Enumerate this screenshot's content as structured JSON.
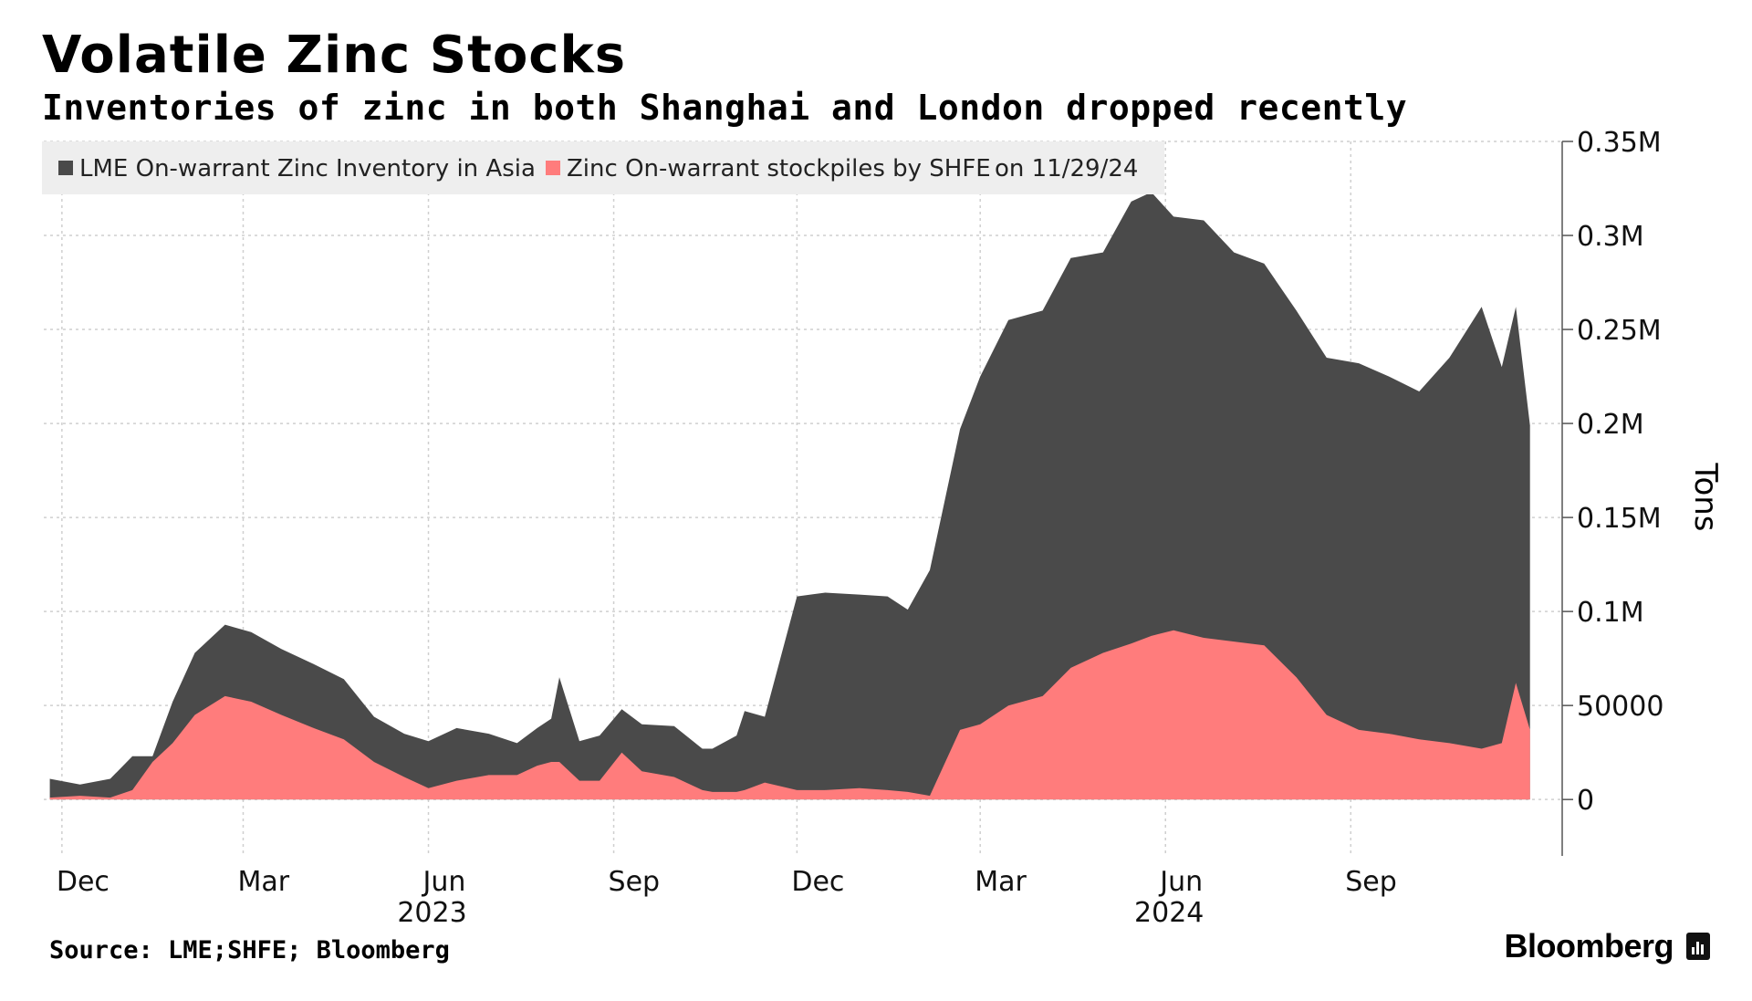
{
  "title": "Volatile Zinc Stocks",
  "subtitle": "Inventories of zinc in both Shanghai and London dropped recently",
  "source": "Source: LME;SHFE; Bloomberg",
  "brand": "Bloomberg",
  "colors": {
    "lme": "#4a4a4a",
    "shfe": "#ff7c7c",
    "grid": "#cfcfcf",
    "legend_bg": "#eeeeee"
  },
  "chart_data": {
    "type": "area",
    "stacked": true,
    "ylabel": "Tons",
    "ylim": [
      -30000,
      350000
    ],
    "yticks": [
      0,
      50000,
      100000,
      150000,
      200000,
      250000,
      300000,
      350000
    ],
    "ytick_labels": [
      "0",
      "50000",
      "0.1M",
      "0.15M",
      "0.2M",
      "0.25M",
      "0.3M",
      "0.35M"
    ],
    "xlim": [
      "2022-11-22",
      "2024-12-15"
    ],
    "xticks": [
      {
        "date": "2022-12-01",
        "label": "Dec"
      },
      {
        "date": "2023-03-01",
        "label": "Mar"
      },
      {
        "date": "2023-06-01",
        "label": "Jun"
      },
      {
        "date": "2023-09-01",
        "label": "Sep"
      },
      {
        "date": "2023-12-01",
        "label": "Dec"
      },
      {
        "date": "2024-03-01",
        "label": "Mar"
      },
      {
        "date": "2024-06-01",
        "label": "Jun"
      },
      {
        "date": "2024-09-01",
        "label": "Sep"
      }
    ],
    "year_labels": [
      {
        "date": "2023-06-01",
        "label": "2023"
      },
      {
        "date": "2024-06-01",
        "label": "2024"
      }
    ],
    "legend_placement": "top-left",
    "legend_suffix": "on 11/29/24",
    "grid": true,
    "series": [
      {
        "name": "LME On-warrant Zinc Inventory in Asia",
        "x": [
          "2022-11-25",
          "2022-12-10",
          "2022-12-25",
          "2023-01-05",
          "2023-01-15",
          "2023-01-25",
          "2023-02-05",
          "2023-02-20",
          "2023-03-05",
          "2023-03-20",
          "2023-04-05",
          "2023-04-20",
          "2023-05-05",
          "2023-05-20",
          "2023-06-01",
          "2023-06-15",
          "2023-07-01",
          "2023-07-15",
          "2023-07-25",
          "2023-08-01",
          "2023-08-05",
          "2023-08-15",
          "2023-08-25",
          "2023-09-05",
          "2023-09-15",
          "2023-10-01",
          "2023-10-15",
          "2023-10-20",
          "2023-11-01",
          "2023-11-05",
          "2023-11-15",
          "2023-12-01",
          "2023-12-15",
          "2024-01-01",
          "2024-01-15",
          "2024-01-25",
          "2024-02-05",
          "2024-02-20",
          "2024-03-01",
          "2024-03-15",
          "2024-04-01",
          "2024-04-15",
          "2024-05-01",
          "2024-05-15",
          "2024-05-25",
          "2024-06-05",
          "2024-06-20",
          "2024-07-05",
          "2024-07-20",
          "2024-08-05",
          "2024-08-20",
          "2024-09-05",
          "2024-09-20",
          "2024-10-05",
          "2024-10-20",
          "2024-11-05",
          "2024-11-15",
          "2024-11-22",
          "2024-11-29"
        ],
        "values": [
          10000,
          6000,
          10000,
          18000,
          3000,
          22000,
          33000,
          38000,
          37000,
          35000,
          34000,
          32000,
          24000,
          23000,
          25000,
          28000,
          22000,
          17000,
          20000,
          23000,
          45000,
          21000,
          24000,
          23000,
          25000,
          27000,
          22000,
          23000,
          30000,
          42000,
          35000,
          103000,
          105000,
          103000,
          103000,
          97000,
          120000,
          160000,
          185000,
          205000,
          205000,
          218000,
          213000,
          235000,
          236000,
          220000,
          222000,
          207000,
          203000,
          195000,
          190000,
          195000,
          190000,
          185000,
          205000,
          235000,
          200000,
          200000,
          162000
        ]
      },
      {
        "name": "Zinc On-warrant stockpiles by SHFE",
        "x": [
          "2022-11-25",
          "2022-12-10",
          "2022-12-25",
          "2023-01-05",
          "2023-01-15",
          "2023-01-25",
          "2023-02-05",
          "2023-02-20",
          "2023-03-05",
          "2023-03-20",
          "2023-04-05",
          "2023-04-20",
          "2023-05-05",
          "2023-05-20",
          "2023-06-01",
          "2023-06-15",
          "2023-07-01",
          "2023-07-15",
          "2023-07-25",
          "2023-08-01",
          "2023-08-05",
          "2023-08-15",
          "2023-08-25",
          "2023-09-05",
          "2023-09-15",
          "2023-10-01",
          "2023-10-15",
          "2023-10-20",
          "2023-11-01",
          "2023-11-05",
          "2023-11-15",
          "2023-12-01",
          "2023-12-15",
          "2024-01-01",
          "2024-01-15",
          "2024-01-25",
          "2024-02-05",
          "2024-02-20",
          "2024-03-01",
          "2024-03-15",
          "2024-04-01",
          "2024-04-15",
          "2024-05-01",
          "2024-05-15",
          "2024-05-25",
          "2024-06-05",
          "2024-06-20",
          "2024-07-05",
          "2024-07-20",
          "2024-08-05",
          "2024-08-20",
          "2024-09-05",
          "2024-09-20",
          "2024-10-05",
          "2024-10-20",
          "2024-11-05",
          "2024-11-15",
          "2024-11-22",
          "2024-11-29"
        ],
        "values": [
          1000,
          2000,
          1000,
          5000,
          20000,
          30000,
          45000,
          55000,
          52000,
          45000,
          38000,
          32000,
          20000,
          12000,
          6000,
          10000,
          13000,
          13000,
          18000,
          20000,
          20000,
          10000,
          10000,
          25000,
          15000,
          12000,
          5000,
          4000,
          4000,
          5000,
          9000,
          5000,
          5000,
          6000,
          5000,
          4000,
          2000,
          37000,
          40000,
          50000,
          55000,
          70000,
          78000,
          83000,
          87000,
          90000,
          86000,
          84000,
          82000,
          65000,
          45000,
          37000,
          35000,
          32000,
          30000,
          27000,
          30000,
          62000,
          37000
        ]
      }
    ]
  }
}
